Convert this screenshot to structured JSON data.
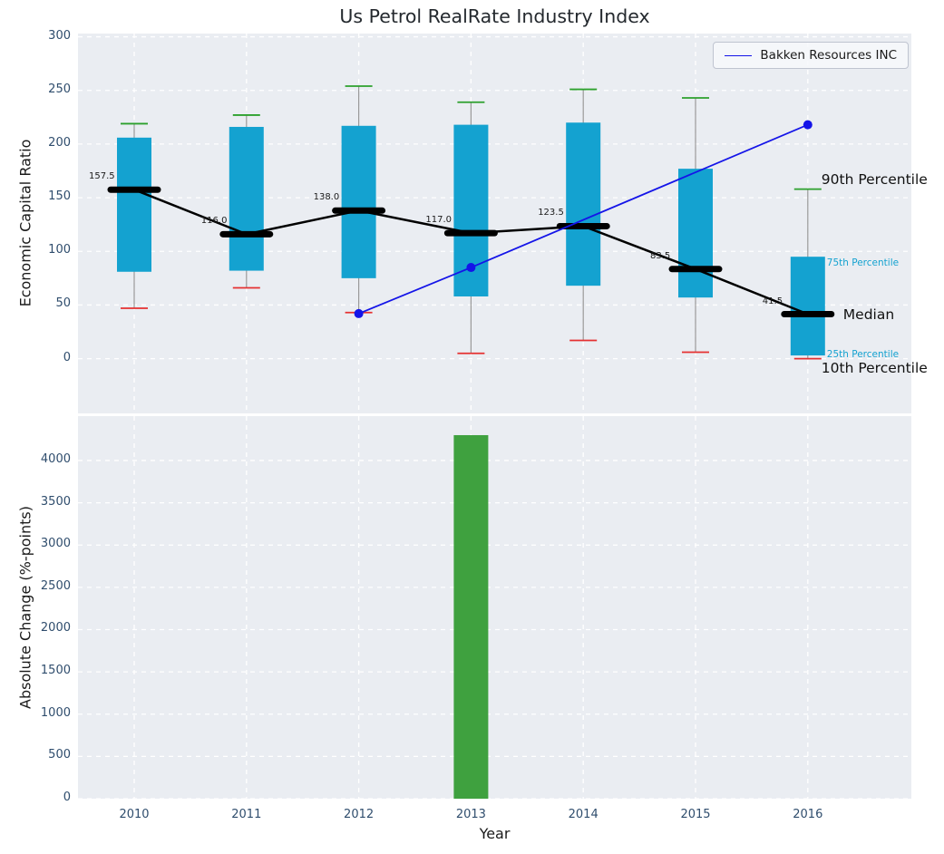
{
  "title": "Us Petrol RealRate Industry Index",
  "legend": {
    "label": "Bakken Resources INC"
  },
  "axes": {
    "top_ylabel": "Economic Capital Ratio",
    "bottom_ylabel": "Absolute Change (%-points)",
    "xlabel": "Year"
  },
  "colors": {
    "box": "#14a2d0",
    "median_line": "#000000",
    "p90_cap": "#2ca02c",
    "p10_cap": "#e53131",
    "company_line": "#1414e8",
    "bar": "#3fa13f",
    "plot_bg": "#eaedf2",
    "grid": "#ffffff",
    "whisker": "#999999",
    "tick_label": "#2f4d6d",
    "text": "#1a1a1a",
    "percentile_small_label": "#14a2d0"
  },
  "chart_data": [
    {
      "type": "boxplot",
      "panel": "top",
      "title": "Us Petrol RealRate Industry Index",
      "ylabel": "Economic Capital Ratio",
      "ylim": [
        -51,
        303
      ],
      "yticks": [
        0,
        50,
        100,
        150,
        200,
        250,
        300
      ],
      "grid": "dashed-white-on-gray",
      "legend_position": "upper right",
      "categories": [
        "2010",
        "2011",
        "2012",
        "2013",
        "2014",
        "2015",
        "2016"
      ],
      "boxes": [
        {
          "year": "2010",
          "p10": 47,
          "p25": 81,
          "median": 157.5,
          "p75": 206,
          "p90": 219,
          "median_label": "157.5"
        },
        {
          "year": "2011",
          "p10": 66,
          "p25": 82,
          "median": 116.0,
          "p75": 216,
          "p90": 227,
          "median_label": "116.0"
        },
        {
          "year": "2012",
          "p10": 43,
          "p25": 75,
          "median": 138.0,
          "p75": 217,
          "p90": 254,
          "median_label": "138.0"
        },
        {
          "year": "2013",
          "p10": 5,
          "p25": 58,
          "median": 117.0,
          "p75": 218,
          "p90": 239,
          "median_label": "117.0"
        },
        {
          "year": "2014",
          "p10": 17,
          "p25": 68,
          "median": 123.5,
          "p75": 220,
          "p90": 251,
          "median_label": "123.5"
        },
        {
          "year": "2015",
          "p10": 6,
          "p25": 57,
          "median": 83.5,
          "p75": 177,
          "p90": 243,
          "median_label": "83.5"
        },
        {
          "year": "2016",
          "p10": 0,
          "p25": 3,
          "median": 41.5,
          "p75": 95,
          "p90": 158,
          "median_label": "41.5"
        }
      ],
      "series": [
        {
          "name": "Bakken Resources INC",
          "type": "line-with-markers",
          "points": [
            [
              "2012",
              42
            ],
            [
              "2013",
              85
            ],
            [
              "2016",
              218
            ]
          ]
        }
      ],
      "annotations": [
        {
          "text": "90th Percentile",
          "y": 166,
          "style": "large",
          "x_offset": 15
        },
        {
          "text": "75th Percentile",
          "y": 88,
          "style": "small",
          "x_offset": 21
        },
        {
          "text": "Median",
          "y": 40,
          "style": "large",
          "x_offset": 39
        },
        {
          "text": "25th Percentile",
          "y": 3,
          "style": "small",
          "x_offset": 21
        },
        {
          "text": "10th Percentile",
          "y": -10,
          "style": "large",
          "x_offset": 15
        }
      ]
    },
    {
      "type": "bar",
      "panel": "bottom",
      "ylabel": "Absolute Change (%-points)",
      "xlabel": "Year",
      "ylim": [
        0,
        4525
      ],
      "yticks": [
        0,
        500,
        1000,
        1500,
        2000,
        2500,
        3000,
        3500,
        4000
      ],
      "categories": [
        "2010",
        "2011",
        "2012",
        "2013",
        "2014",
        "2015",
        "2016"
      ],
      "values": [
        null,
        null,
        null,
        4300,
        null,
        null,
        null
      ]
    }
  ]
}
